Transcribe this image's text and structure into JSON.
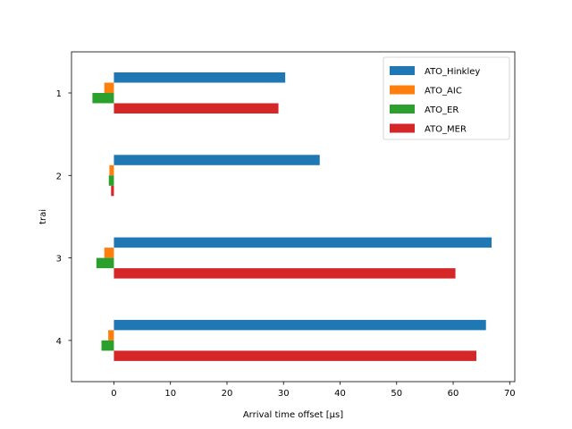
{
  "chart_data": {
    "type": "bar",
    "orientation": "horizontal",
    "categories": [
      "1",
      "2",
      "3",
      "4"
    ],
    "series": [
      {
        "name": "ATO_Hinkley",
        "color": "#1f77b4",
        "values": [
          30.3,
          36.4,
          66.8,
          65.8
        ]
      },
      {
        "name": "ATO_AIC",
        "color": "#ff7f0e",
        "values": [
          -1.7,
          -0.8,
          -1.7,
          -1.0
        ]
      },
      {
        "name": "ATO_ER",
        "color": "#2ca02c",
        "values": [
          -3.8,
          -0.9,
          -3.1,
          -2.2
        ]
      },
      {
        "name": "ATO_MER",
        "color": "#d62728",
        "values": [
          29.1,
          -0.5,
          60.4,
          64.1
        ]
      }
    ],
    "xlabel": "Arrival time offset [μs]",
    "ylabel": "trai",
    "xlim": [
      -7.5,
      70.9
    ],
    "xticks": [
      0,
      10,
      20,
      30,
      40,
      50,
      60,
      70
    ],
    "y_inverted": true,
    "grid": false,
    "legend": "top-right"
  }
}
